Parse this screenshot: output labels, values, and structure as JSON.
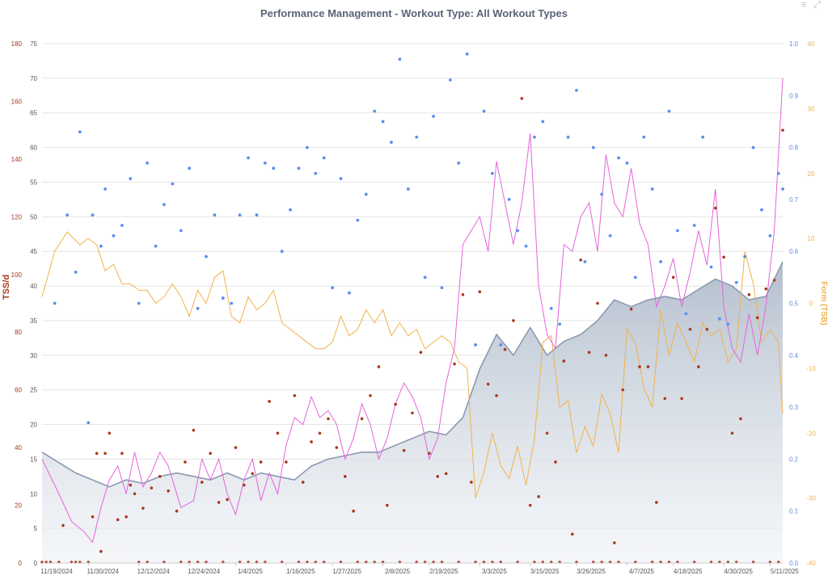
{
  "title": "Performance Management - Workout Type: All Workout Types",
  "icons": {
    "menu": "hamburger-menu-icon",
    "expand": "expand-arrows-icon",
    "menu_glyph": "≡ ⤢"
  },
  "colors": {
    "tss": "#a8371e",
    "ctl_line": "#8a9ab0",
    "ctl_fill": "#b7c3d1",
    "atl": "#e464dc",
    "tsb": "#f0b24a",
    "intensity": "#5b8def",
    "grid": "#e5e5e5",
    "axis_text": "#555555"
  },
  "chart_data": {
    "type": "line",
    "title": "Performance Management - Workout Type: All Workout Types",
    "x_ticks": [
      "11/19/2024",
      "11/30/2024",
      "12/12/2024",
      "12/24/2024",
      "1/4/2025",
      "1/16/2025",
      "1/27/2025",
      "2/8/2025",
      "2/19/2025",
      "3/3/2025",
      "3/15/2025",
      "3/26/2025",
      "4/7/2025",
      "4/18/2025",
      "4/30/2025",
      "5/11/2025"
    ],
    "x_tick_days": [
      0,
      11,
      23,
      35,
      46,
      58,
      69,
      81,
      92,
      104,
      116,
      127,
      139,
      150,
      162,
      173
    ],
    "y_axes": {
      "tss": {
        "label": "TSS/d",
        "range": [
          0,
          180
        ],
        "ticks": [
          "0",
          "20",
          "40",
          "60",
          "80",
          "100",
          "120",
          "140",
          "160",
          "180"
        ]
      },
      "ctl": {
        "label": "",
        "range": [
          0,
          75
        ],
        "ticks": [
          "0",
          "5",
          "10",
          "15",
          "20",
          "25",
          "30",
          "35",
          "40",
          "45",
          "50",
          "55",
          "60",
          "65",
          "70",
          "75"
        ]
      },
      "intensity": {
        "label": "",
        "range": [
          0,
          1
        ],
        "ticks": [
          "0.0",
          "0.1",
          "0.2",
          "0.3",
          "0.4",
          "0.5",
          "0.6",
          "0.7",
          "0.8",
          "0.9",
          "1.0"
        ]
      },
      "form": {
        "label": "Form (TSB)",
        "range": [
          -40,
          40
        ],
        "ticks": [
          "-40",
          "-30",
          "-20",
          "-10",
          "0",
          "10",
          "20",
          "30",
          "40"
        ]
      }
    },
    "grid": true,
    "series": {
      "ctl": {
        "x": [
          0,
          4,
          8,
          12,
          16,
          20,
          24,
          28,
          32,
          36,
          40,
          44,
          48,
          52,
          56,
          60,
          64,
          68,
          72,
          76,
          80,
          84,
          88,
          92,
          96,
          100,
          104,
          108,
          112,
          116,
          120,
          124,
          128,
          132,
          136,
          140,
          144,
          148,
          152,
          156,
          160,
          164,
          168,
          172,
          176
        ],
        "values": [
          16,
          14.5,
          13,
          12,
          11,
          12,
          11.5,
          12.5,
          13,
          12.5,
          12,
          13,
          12,
          13,
          12.5,
          12,
          14,
          15,
          15.5,
          16,
          16,
          17,
          18,
          19,
          18.5,
          21,
          28,
          33,
          30,
          34,
          30,
          32,
          33,
          35,
          38,
          37,
          38,
          38.5,
          38,
          39.5,
          41,
          40,
          38,
          38.5,
          43.5
        ]
      },
      "atl": {
        "x": [
          0,
          4,
          7,
          10,
          12,
          14,
          16,
          18,
          20,
          22,
          24,
          26,
          28,
          30,
          33,
          36,
          38,
          40,
          42,
          44,
          46,
          48,
          50,
          52,
          54,
          56,
          58,
          60,
          62,
          64,
          66,
          68,
          70,
          72,
          74,
          76,
          78,
          80,
          82,
          84,
          86,
          88,
          90,
          92,
          94,
          96,
          98,
          100,
          102,
          104,
          106,
          108,
          110,
          112,
          114,
          116,
          118,
          120,
          122,
          124,
          126,
          128,
          130,
          132,
          134,
          136,
          138,
          140,
          142,
          144,
          146,
          148,
          150,
          152,
          154,
          156,
          158,
          160,
          162,
          164,
          166,
          168,
          170,
          172,
          174,
          176
        ],
        "values": [
          15,
          10,
          6,
          4.5,
          3,
          8,
          12,
          14,
          10,
          16,
          11,
          13,
          16,
          14,
          8,
          9,
          15,
          12,
          15,
          10,
          7,
          12,
          15,
          9,
          13,
          10,
          17,
          21,
          20,
          24,
          21,
          22,
          20,
          15,
          18,
          23,
          20,
          15,
          18,
          23,
          26,
          24,
          21,
          15,
          18,
          26,
          31,
          46,
          48,
          50,
          45,
          58,
          52,
          46,
          52,
          62,
          40,
          33,
          31,
          46,
          45,
          50,
          52,
          45,
          59,
          52,
          50,
          57,
          49,
          46,
          37,
          40,
          44,
          37,
          42,
          48,
          43,
          54,
          37,
          31,
          29,
          36,
          30,
          37,
          48,
          70
        ]
      },
      "tsb": {
        "x": [
          0,
          3,
          6,
          9,
          11,
          13,
          15,
          17,
          19,
          21,
          23,
          25,
          27,
          29,
          31,
          33,
          35,
          37,
          39,
          41,
          43,
          45,
          47,
          49,
          51,
          53,
          55,
          57,
          59,
          61,
          63,
          65,
          67,
          69,
          71,
          73,
          75,
          77,
          79,
          81,
          83,
          85,
          87,
          89,
          91,
          93,
          95,
          97,
          99,
          101,
          103,
          105,
          107,
          109,
          111,
          113,
          115,
          117,
          119,
          121,
          123,
          125,
          127,
          129,
          131,
          133,
          135,
          137,
          139,
          141,
          143,
          145,
          147,
          149,
          151,
          153,
          155,
          157,
          159,
          161,
          163,
          165,
          167,
          169,
          171,
          173,
          175,
          176
        ],
        "values": [
          1,
          8,
          11,
          9,
          10,
          9,
          5,
          6,
          3,
          3,
          2,
          2,
          0,
          1,
          3,
          1,
          -2,
          2,
          0,
          4,
          5,
          -2,
          -3,
          1,
          -1,
          0,
          2,
          -3,
          -4,
          -5,
          -6,
          -7,
          -7,
          -6,
          -2,
          -5,
          -4,
          -1,
          -3,
          -1,
          -5,
          -3,
          -5,
          -4,
          -7,
          -6,
          -5,
          -6,
          -9,
          -10,
          -30,
          -26,
          -20,
          -25,
          -27,
          -22,
          -28,
          -21,
          -6,
          -5,
          -16,
          -15,
          -23,
          -19,
          -22,
          -14,
          -17,
          -23,
          -4,
          -6,
          -13,
          -16,
          -1,
          -8,
          -3,
          -6,
          -9,
          -3,
          -5,
          -4,
          -9,
          -7,
          8,
          3,
          -6,
          -4,
          -6,
          -17
        ]
      },
      "tss_x": [
        5,
        12,
        13,
        14,
        15,
        16,
        18,
        19,
        20,
        21,
        22,
        24,
        26,
        28,
        30,
        32,
        34,
        36,
        38,
        40,
        42,
        44,
        46,
        48,
        50,
        52,
        54,
        56,
        58,
        60,
        62,
        64,
        66,
        68,
        70,
        72,
        74,
        76,
        78,
        80,
        82,
        84,
        86,
        88,
        90,
        92,
        94,
        96,
        98,
        100,
        102,
        104,
        106,
        108,
        110,
        112,
        114,
        116,
        118,
        120,
        122,
        124,
        126,
        128,
        130,
        132,
        134,
        136,
        138,
        140,
        142,
        144,
        146,
        148,
        150,
        152,
        154,
        156,
        158,
        160,
        162,
        164,
        166,
        168,
        170,
        172,
        174,
        176
      ],
      "tss_values": [
        13,
        16,
        38,
        4,
        38,
        45,
        15,
        38,
        16,
        27,
        24,
        19,
        26,
        30,
        25,
        18,
        35,
        46,
        28,
        38,
        21,
        22,
        40,
        27,
        31,
        35,
        56,
        45,
        35,
        58,
        28,
        42,
        45,
        50,
        40,
        30,
        18,
        50,
        58,
        68,
        20,
        55,
        39,
        52,
        73,
        38,
        30,
        31,
        69,
        93,
        28,
        94,
        62,
        58,
        74,
        84,
        161,
        20,
        23,
        45,
        35,
        70,
        10,
        105,
        73,
        90,
        72,
        7,
        60,
        88,
        68,
        68,
        21,
        57,
        99,
        57,
        81,
        68,
        81,
        123,
        106,
        45,
        50,
        93,
        85,
        95,
        98,
        150
      ],
      "intensity_x": [
        3,
        6,
        8,
        9,
        11,
        12,
        14,
        15,
        17,
        19,
        21,
        23,
        25,
        27,
        29,
        31,
        33,
        35,
        37,
        39,
        41,
        43,
        45,
        47,
        49,
        51,
        53,
        55,
        57,
        59,
        61,
        63,
        65,
        67,
        69,
        71,
        73,
        75,
        77,
        79,
        81,
        83,
        85,
        87,
        89,
        91,
        93,
        95,
        97,
        99,
        101,
        103,
        105,
        107,
        109,
        111,
        113,
        115,
        117,
        119,
        121,
        123,
        125,
        127,
        129,
        131,
        133,
        135,
        137,
        139,
        141,
        143,
        145,
        147,
        149,
        151,
        153,
        155,
        157,
        159,
        161,
        163,
        165,
        167,
        169,
        171,
        173,
        175,
        176
      ],
      "intensity_values": [
        0.5,
        0.67,
        0.56,
        0.83,
        0.27,
        0.67,
        0.61,
        0.72,
        0.63,
        0.65,
        0.74,
        0.5,
        0.77,
        0.61,
        0.69,
        0.73,
        0.64,
        0.76,
        0.49,
        0.59,
        0.67,
        0.51,
        0.5,
        0.67,
        0.78,
        0.67,
        0.77,
        0.76,
        0.6,
        0.68,
        0.76,
        0.8,
        0.75,
        0.78,
        0.53,
        0.74,
        0.52,
        0.66,
        0.71,
        0.87,
        0.85,
        0.81,
        0.97,
        0.72,
        0.82,
        0.55,
        0.86,
        0.53,
        0.93,
        0.77,
        0.98,
        0.42,
        0.87,
        0.75,
        0.42,
        0.7,
        0.64,
        0.61,
        0.82,
        0.85,
        0.49,
        0.46,
        0.82,
        0.91,
        0.58,
        0.8,
        0.71,
        0.63,
        0.78,
        0.77,
        0.55,
        0.82,
        0.72,
        0.58,
        0.87,
        0.64,
        0.48,
        0.65,
        0.82,
        0.57,
        0.47,
        0.46,
        0.54,
        0.59,
        0.8,
        0.68,
        0.63,
        0.75,
        0.72
      ]
    }
  }
}
